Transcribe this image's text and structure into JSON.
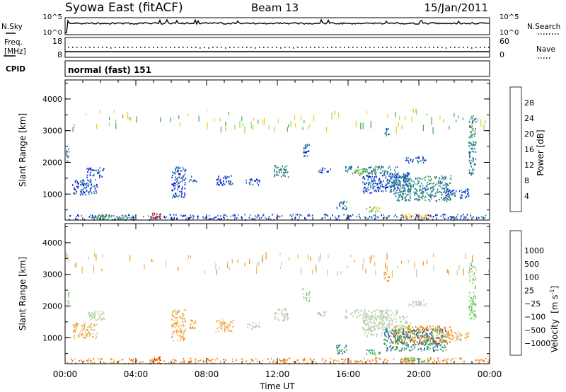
{
  "header": {
    "title": "Syowa East (fitACF)",
    "beam": "Beam 13",
    "date": "15/Jan/2011"
  },
  "top_panels": {
    "nsky_label": "N.Sky",
    "nsearch_label": "N.Search",
    "nsky_ticks": [
      "10^5",
      "10^0"
    ],
    "nsearch_ticks": [
      "10^5",
      "10^0"
    ],
    "freq_label_line1": "Freq.",
    "freq_label_line2": "[MHz]",
    "freq_ticks": [
      "18",
      "8"
    ],
    "nave_label": "Nave",
    "nave_ticks": [
      "60",
      "0"
    ],
    "cpid_label": "CPID",
    "cpid_text": "normal (fast) 151"
  },
  "chart_data": [
    {
      "type": "heatmap",
      "name": "power",
      "xlabel": "",
      "ylabel": "Slant Range [km]",
      "xlim_hours": [
        0,
        24
      ],
      "ylim": [
        180,
        4600
      ],
      "yticks": [
        "1000",
        "2000",
        "3000",
        "4000"
      ],
      "colorbar": {
        "title": "Power [dB]",
        "ticks": [
          "4",
          "8",
          "12",
          "16",
          "20",
          "24",
          "28"
        ],
        "colors": [
          "#0000ff",
          "#1f4fb8",
          "#2f8f8f",
          "#3fa85a",
          "#8fd93f",
          "#e8d21a",
          "#f5a623",
          "#ef6a1c",
          "#e8411a",
          "#e00000"
        ]
      },
      "regions": [
        {
          "x": [
            0.0,
            0.2
          ],
          "y": [
            2000,
            2450
          ],
          "level": 2
        },
        {
          "x": [
            0.4,
            1.8
          ],
          "y": [
            1000,
            1500
          ],
          "level": 1
        },
        {
          "x": [
            1.2,
            2.2
          ],
          "y": [
            1550,
            1850
          ],
          "level": 1
        },
        {
          "x": [
            6.0,
            6.8
          ],
          "y": [
            900,
            1900
          ],
          "level": 1
        },
        {
          "x": [
            7.0,
            7.4
          ],
          "y": [
            1400,
            1600
          ],
          "level": 1
        },
        {
          "x": [
            8.5,
            9.5
          ],
          "y": [
            1300,
            1600
          ],
          "level": 1
        },
        {
          "x": [
            10.2,
            11.0
          ],
          "y": [
            1300,
            1500
          ],
          "level": 1
        },
        {
          "x": [
            11.8,
            12.6
          ],
          "y": [
            1550,
            1950
          ],
          "level": 2
        },
        {
          "x": [
            13.4,
            13.8
          ],
          "y": [
            2150,
            2600
          ],
          "level": 1
        },
        {
          "x": [
            14.2,
            15.0
          ],
          "y": [
            1700,
            1850
          ],
          "level": 1
        },
        {
          "x": [
            15.3,
            15.9
          ],
          "y": [
            500,
            800
          ],
          "level": 2
        },
        {
          "x": [
            15.8,
            18.8
          ],
          "y": [
            1650,
            1900
          ],
          "level": 2
        },
        {
          "x": [
            16.4,
            17.1
          ],
          "y": [
            1600,
            1800
          ],
          "level": 4
        },
        {
          "x": [
            16.8,
            19.5
          ],
          "y": [
            1050,
            1700
          ],
          "level": 1
        },
        {
          "x": [
            17.0,
            17.8
          ],
          "y": [
            450,
            650
          ],
          "level": 4
        },
        {
          "x": [
            18.0,
            18.3
          ],
          "y": [
            2800,
            3100
          ],
          "level": 1
        },
        {
          "x": [
            18.5,
            21.8
          ],
          "y": [
            800,
            1600
          ],
          "level": 2
        },
        {
          "x": [
            19.0,
            20.7
          ],
          "y": [
            250,
            400
          ],
          "level": 6
        },
        {
          "x": [
            19.2,
            20.4
          ],
          "y": [
            2000,
            2200
          ],
          "level": 1
        },
        {
          "x": [
            21.5,
            22.8
          ],
          "y": [
            900,
            1200
          ],
          "level": 1
        },
        {
          "x": [
            22.8,
            23.2
          ],
          "y": [
            1600,
            3500
          ],
          "level": 2
        },
        {
          "x": [
            0.0,
            24.0
          ],
          "y": [
            200,
            380
          ],
          "level": 1
        },
        {
          "x": [
            4.8,
            5.4
          ],
          "y": [
            250,
            420
          ],
          "level": 9
        },
        {
          "x": [
            1.6,
            4.0
          ],
          "y": [
            220,
            360
          ],
          "level": 3
        }
      ]
    },
    {
      "type": "heatmap",
      "name": "velocity",
      "xlabel": "Time UT",
      "ylabel": "Slant Range [km]",
      "xlim_hours": [
        0,
        24
      ],
      "ylim": [
        180,
        4600
      ],
      "xticks": [
        "00:00",
        "04:00",
        "08:00",
        "12:00",
        "16:00",
        "20:00",
        "00:00"
      ],
      "yticks": [
        "1000",
        "2000",
        "3000",
        "4000"
      ],
      "colorbar": {
        "title_main": "Velocity",
        "title_unit_prefix": "[m s",
        "title_unit_sup": "-1",
        "title_unit_suffix": "]",
        "ticks": [
          "1000",
          "500",
          "100",
          "25",
          "−25",
          "−100",
          "−500",
          "−1000"
        ],
        "colors": [
          "#1a1aff",
          "#2f4fb8",
          "#2f8f6f",
          "#3fb84f",
          "#8fd96f",
          "#c8c8c0",
          "#c8c8c0",
          "#f5b84f",
          "#f58f1a",
          "#ef5f1a",
          "#e00000"
        ]
      },
      "regions": [
        {
          "x": [
            0.0,
            0.2
          ],
          "y": [
            2000,
            2450
          ],
          "level": 4
        },
        {
          "x": [
            0.4,
            1.8
          ],
          "y": [
            1000,
            1500
          ],
          "level": 7
        },
        {
          "x": [
            1.2,
            2.2
          ],
          "y": [
            1550,
            1850
          ],
          "level": 5
        },
        {
          "x": [
            6.0,
            6.8
          ],
          "y": [
            900,
            1900
          ],
          "level": 7
        },
        {
          "x": [
            7.0,
            7.4
          ],
          "y": [
            1300,
            1600
          ],
          "level": 8
        },
        {
          "x": [
            8.5,
            9.5
          ],
          "y": [
            1200,
            1600
          ],
          "level": 7
        },
        {
          "x": [
            10.2,
            11.0
          ],
          "y": [
            1300,
            1500
          ],
          "level": 5
        },
        {
          "x": [
            11.8,
            12.6
          ],
          "y": [
            1550,
            1950
          ],
          "level": 5
        },
        {
          "x": [
            13.4,
            13.8
          ],
          "y": [
            2150,
            2600
          ],
          "level": 4
        },
        {
          "x": [
            14.2,
            15.0
          ],
          "y": [
            1700,
            1850
          ],
          "level": 5
        },
        {
          "x": [
            15.3,
            15.9
          ],
          "y": [
            500,
            800
          ],
          "level": 2
        },
        {
          "x": [
            15.8,
            18.8
          ],
          "y": [
            1650,
            1900
          ],
          "level": 5
        },
        {
          "x": [
            16.8,
            19.5
          ],
          "y": [
            1050,
            1700
          ],
          "level": 5
        },
        {
          "x": [
            17.0,
            17.8
          ],
          "y": [
            450,
            650
          ],
          "level": 3
        },
        {
          "x": [
            18.0,
            18.3
          ],
          "y": [
            2800,
            3100
          ],
          "level": 8
        },
        {
          "x": [
            18.5,
            21.8
          ],
          "y": [
            800,
            1400
          ],
          "level": 8
        },
        {
          "x": [
            19.0,
            20.7
          ],
          "y": [
            250,
            400
          ],
          "level": 3
        },
        {
          "x": [
            19.2,
            20.4
          ],
          "y": [
            2000,
            2200
          ],
          "level": 5
        },
        {
          "x": [
            21.5,
            22.8
          ],
          "y": [
            900,
            1200
          ],
          "level": 7
        },
        {
          "x": [
            22.8,
            23.2
          ],
          "y": [
            1600,
            3500
          ],
          "level": 4
        },
        {
          "x": [
            0.0,
            24.0
          ],
          "y": [
            200,
            380
          ],
          "level": 8
        },
        {
          "x": [
            4.8,
            5.4
          ],
          "y": [
            250,
            420
          ],
          "level": 9
        },
        {
          "x": [
            18.0,
            21.5
          ],
          "y": [
            600,
            1300
          ],
          "level": 2
        }
      ]
    }
  ]
}
